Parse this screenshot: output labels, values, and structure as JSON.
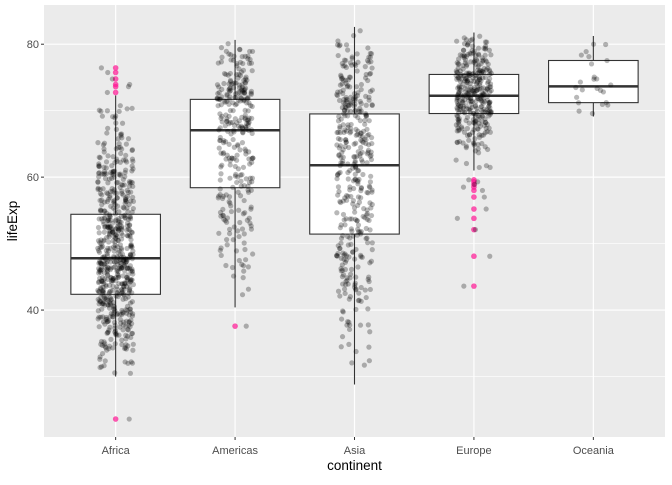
{
  "chart_data": {
    "type": "boxplot",
    "title": "",
    "xlabel": "continent",
    "ylabel": "lifeExp",
    "ylim": [
      20.9,
      85.9
    ],
    "yticks": [
      40,
      60,
      80
    ],
    "grid": true,
    "categories": [
      "Africa",
      "Americas",
      "Asia",
      "Europe",
      "Oceania"
    ],
    "boxes": [
      {
        "category": "Africa",
        "lower_whisker": 30.0,
        "q1": 42.37,
        "median": 47.79,
        "q3": 54.41,
        "upper_whisker": 72.3,
        "n": 624,
        "outliers": [
          76.44,
          75.74,
          74.77,
          73.95,
          73.62,
          72.74,
          23.6
        ]
      },
      {
        "category": "Americas",
        "lower_whisker": 40.4,
        "q1": 58.41,
        "median": 67.05,
        "q3": 71.7,
        "upper_whisker": 80.65,
        "n": 300,
        "outliers": [
          37.58
        ]
      },
      {
        "category": "Asia",
        "lower_whisker": 28.8,
        "q1": 51.43,
        "median": 61.79,
        "q3": 69.51,
        "upper_whisker": 82.6,
        "n": 396,
        "outliers": []
      },
      {
        "category": "Europe",
        "lower_whisker": 61.0,
        "q1": 69.57,
        "median": 72.24,
        "q3": 75.45,
        "upper_whisker": 81.76,
        "n": 360,
        "outliers": [
          59.6,
          59.3,
          58.9,
          58.5,
          58.0,
          57.0,
          55.2,
          53.8,
          52.1,
          48.1,
          43.6
        ]
      },
      {
        "category": "Oceania",
        "lower_whisker": 69.12,
        "q1": 71.21,
        "median": 73.66,
        "q3": 77.55,
        "upper_whisker": 81.24,
        "n": 24,
        "outliers": []
      }
    ],
    "colors": {
      "panel": "#EBEBEB",
      "grid": "#FFFFFF",
      "points": "#000000",
      "outliers": "#FF1493"
    }
  }
}
